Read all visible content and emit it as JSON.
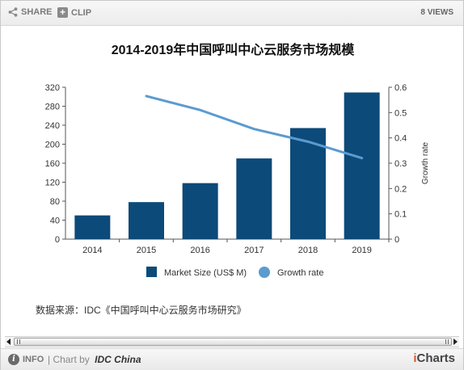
{
  "toolbar": {
    "share_label": "SHARE",
    "clip_label": "CLIP",
    "views_label": "8 VIEWS"
  },
  "footer": {
    "info_label": "INFO",
    "chart_by_prefix": "| Chart by",
    "chart_by_author": "IDC China",
    "brand_prefix": "i",
    "brand_suffix": "Charts"
  },
  "source_note": "数据来源：IDC《中国呼叫中心云服务市场研究》",
  "colors": {
    "bar": "#0c4a79",
    "line": "#5b9bd0"
  },
  "chart_data": {
    "type": "bar",
    "title": "2014-2019年中国呼叫中心云服务市场规模",
    "categories": [
      "2014",
      "2015",
      "2016",
      "2017",
      "2018",
      "2019"
    ],
    "series": [
      {
        "name": "Market Size (US$ M)",
        "type": "bar",
        "axis": "left",
        "values": [
          50,
          78,
          118,
          170,
          234,
          309
        ]
      },
      {
        "name": "Growth rate",
        "type": "line",
        "axis": "right",
        "values": [
          null,
          0.565,
          0.51,
          0.435,
          0.385,
          0.32
        ]
      }
    ],
    "ylim": [
      0,
      320
    ],
    "yticks": [
      "0",
      "40",
      "80",
      "120",
      "160",
      "200",
      "240",
      "280",
      "320"
    ],
    "y2lim": [
      0,
      0.6
    ],
    "y2ticks": [
      "0",
      "0.1",
      "0.2",
      "0.3",
      "0.4",
      "0.5",
      "0.6"
    ],
    "y2label": "Growth rate",
    "xlabel": "",
    "ylabel": "",
    "grid": false,
    "legend_position": "bottom"
  }
}
